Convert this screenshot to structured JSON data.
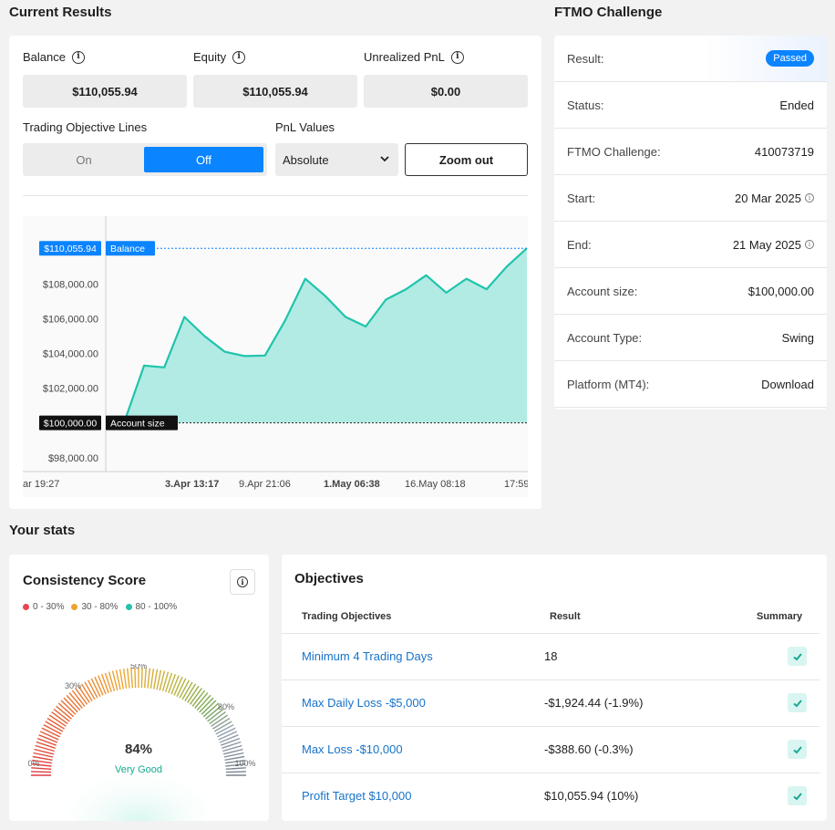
{
  "headings": {
    "current_results": "Current Results",
    "ftmo_challenge": "FTMO Challenge",
    "your_stats": "Your stats"
  },
  "stats": {
    "balance_label": "Balance",
    "balance_value": "$110,055.94",
    "equity_label": "Equity",
    "equity_value": "$110,055.94",
    "pnl_label": "Unrealized PnL",
    "pnl_value": "$0.00"
  },
  "controls": {
    "objective_lines_label": "Trading Objective Lines",
    "toggle_on": "On",
    "toggle_off": "Off",
    "toggle_selected": "Off",
    "pnl_values_label": "PnL Values",
    "pnl_select_value": "Absolute",
    "zoom_out": "Zoom out"
  },
  "chart_data": {
    "type": "area",
    "y_ticks": [
      "$108,000.00",
      "$106,000.00",
      "$104,000.00",
      "$102,000.00",
      "$98,000.00"
    ],
    "y_tick_values": [
      108000,
      106000,
      104000,
      102000,
      98000
    ],
    "ylim": [
      97200,
      111800
    ],
    "x_ticks": [
      "ar 19:27",
      "3.Apr 13:17",
      "9.Apr 21:06",
      "1.May 06:38",
      "16.May 08:18",
      "17:59"
    ],
    "x_ticks_bold": [
      false,
      true,
      false,
      true,
      false,
      false
    ],
    "values": [
      100000,
      103300,
      103200,
      106100,
      105000,
      104100,
      103850,
      103880,
      105900,
      108300,
      107300,
      106100,
      105550,
      107100,
      107700,
      108500,
      107500,
      108300,
      107700,
      109000,
      110055.94
    ],
    "balance_line": {
      "label": "Balance",
      "value_label": "$110,055.94",
      "value": 110055.94,
      "color": "#0a84ff"
    },
    "account_line": {
      "label": "Account size",
      "value_label": "$100,000.00",
      "value": 100000,
      "color": "#111111"
    },
    "fill_color": "#b2ebe3",
    "line_color": "#1fc4ac"
  },
  "ftmo": {
    "rows": [
      {
        "key": "Result:",
        "value": "Passed",
        "badge": true
      },
      {
        "key": "Status:",
        "value": "Ended"
      },
      {
        "key": "FTMO Challenge:",
        "value": "410073719"
      },
      {
        "key": "Start:",
        "value": "20 Mar 2025",
        "info": true
      },
      {
        "key": "End:",
        "value": "21 May 2025",
        "info": true
      },
      {
        "key": "Account size:",
        "value": "$100,000.00"
      },
      {
        "key": "Account Type:",
        "value": "Swing"
      },
      {
        "key": "Platform (MT4):",
        "value": "Download"
      }
    ]
  },
  "consistency": {
    "title": "Consistency Score",
    "legend": [
      {
        "label": "0 - 30%",
        "color": "#e8454f"
      },
      {
        "label": "30 - 80%",
        "color": "#f0a12e"
      },
      {
        "label": "80 - 100%",
        "color": "#22c3a9"
      }
    ],
    "score": "84%",
    "rating": "Very Good",
    "level": 0.84,
    "gauge_labels": [
      "0%",
      "30%",
      "50%",
      "80%",
      "100%"
    ]
  },
  "objectives": {
    "title": "Objectives",
    "headers": {
      "objective": "Trading Objectives",
      "result": "Result",
      "summary": "Summary"
    },
    "rows": [
      {
        "name": "Minimum 4 Trading Days",
        "result": "18"
      },
      {
        "name": "Max Daily Loss -$5,000",
        "result": "-$1,924.44 (-1.9%)"
      },
      {
        "name": "Max Loss -$10,000",
        "result": "-$388.60 (-0.3%)"
      },
      {
        "name": "Profit Target $10,000",
        "result": "$10,055.94 (10%)"
      }
    ]
  }
}
